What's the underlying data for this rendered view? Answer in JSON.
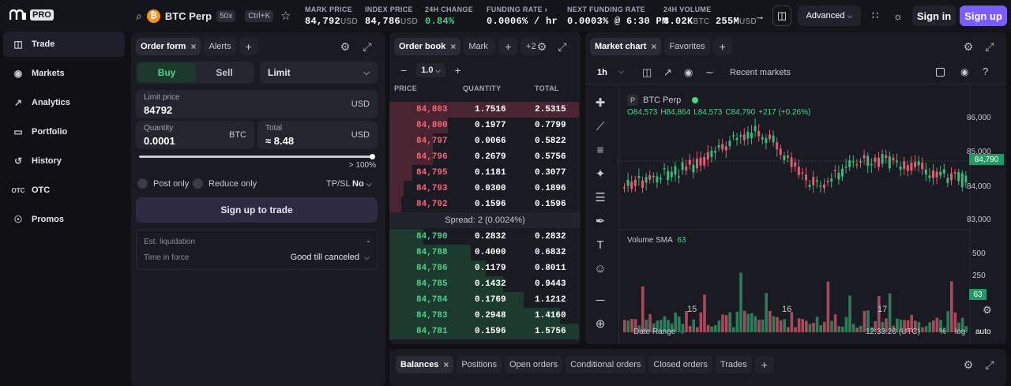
{
  "brand": {
    "name": "PRO"
  },
  "market": {
    "symbol": "BTC Perp",
    "leverage": "50x",
    "shortcut": "Ctrl+K",
    "coin_glyph": "₿"
  },
  "stats": [
    {
      "label": "MARK PRICE",
      "value": "84,792",
      "unit": "USD"
    },
    {
      "label": "INDEX PRICE",
      "value": "84,786",
      "unit": "USD"
    },
    {
      "label": "24H CHANGE",
      "value": "0.84%",
      "unit": ""
    },
    {
      "label": "FUNDING RATE",
      "value": "0.0006% / hr",
      "unit": ""
    },
    {
      "label": "NEXT FUNDING RATE",
      "value": "0.0003% @ 6:30 PM",
      "unit": ""
    },
    {
      "label": "24H VOLUME",
      "value": "3.02K",
      "unit": "BTC",
      "value2": "255M",
      "unit2": "USD"
    }
  ],
  "topbar": {
    "advanced": "Advanced",
    "signin": "Sign in",
    "signup": "Sign up"
  },
  "sidebar": {
    "items": [
      {
        "label": "Trade",
        "icon": "trade-icon"
      },
      {
        "label": "Markets",
        "icon": "markets-icon"
      },
      {
        "label": "Analytics",
        "icon": "analytics-icon"
      },
      {
        "label": "Portfolio",
        "icon": "portfolio-icon"
      },
      {
        "label": "History",
        "icon": "history-icon"
      },
      {
        "label": "OTC",
        "icon": "otc-icon",
        "icon_text": "OTC"
      },
      {
        "label": "Promos",
        "icon": "trophy-icon"
      }
    ]
  },
  "order_form": {
    "tabs": [
      "Order form",
      "Alerts"
    ],
    "buy": "Buy",
    "sell": "Sell",
    "order_type": "Limit",
    "limit_price_label": "Limit price",
    "limit_price": "84792",
    "limit_unit": "USD",
    "qty_label": "Quantity",
    "qty": "0.0001",
    "qty_unit": "BTC",
    "total_label": "Total",
    "total": "≈ 8.48",
    "total_unit": "USD",
    "slider_pct": "> 100%",
    "post_only": "Post only",
    "reduce_only": "Reduce only",
    "tpsl_label": "TP/SL",
    "tpsl_value": "No",
    "cta": "Sign up to trade",
    "liq_label": "Est. liquidation",
    "liq_value": "-",
    "tif_label": "Time in force",
    "tif_value": "Good till canceled"
  },
  "orderbook": {
    "tabs": [
      "Order book",
      "Mark"
    ],
    "more": "+2",
    "tick": "1.0",
    "headers": [
      "PRICE",
      "QUANTITY",
      "TOTAL"
    ],
    "asks": [
      {
        "p": "84,803",
        "q": "1.7516",
        "t": "2.5315",
        "d": 1.0
      },
      {
        "p": "84,800",
        "q": "0.1977",
        "t": "0.7799",
        "d": 0.31
      },
      {
        "p": "84,797",
        "q": "0.0066",
        "t": "0.5822",
        "d": 0.23
      },
      {
        "p": "84,796",
        "q": "0.2679",
        "t": "0.5756",
        "d": 0.23
      },
      {
        "p": "84,795",
        "q": "0.1181",
        "t": "0.3077",
        "d": 0.12
      },
      {
        "p": "84,793",
        "q": "0.0300",
        "t": "0.1896",
        "d": 0.075
      },
      {
        "p": "84,792",
        "q": "0.1596",
        "t": "0.1596",
        "d": 0.063
      }
    ],
    "spread": "Spread: 2 (0.0024%)",
    "bids": [
      {
        "p": "84,790",
        "q": "0.2832",
        "t": "0.2832",
        "d": 0.18
      },
      {
        "p": "84,788",
        "q": "0.4000",
        "t": "0.6832",
        "d": 0.43
      },
      {
        "p": "84,786",
        "q": "0.1179",
        "t": "0.8011",
        "d": 0.51
      },
      {
        "p": "84,785",
        "q": "0.1432",
        "t": "0.9443",
        "d": 0.6
      },
      {
        "p": "84,784",
        "q": "0.1769",
        "t": "1.1212",
        "d": 0.71
      },
      {
        "p": "84,783",
        "q": "0.2948",
        "t": "1.4160",
        "d": 0.9
      },
      {
        "p": "84,781",
        "q": "0.1596",
        "t": "1.5756",
        "d": 1.0
      }
    ]
  },
  "chart": {
    "tabs": [
      "Market chart",
      "Favorites"
    ],
    "interval": "1h",
    "recent": "Recent markets",
    "symbol": "BTC Perp",
    "ohlc": {
      "o": "O84,573",
      "h": "H84,864",
      "l": "L84,573",
      "c": "C84,790",
      "chg": "+217 (+0.26%)"
    },
    "price_ticks": [
      "86,000",
      "85,000",
      "84,000",
      "83,000"
    ],
    "last_price": "84,790",
    "volume_label": "Volume SMA",
    "volume_value": "63",
    "vol_ticks": [
      "500",
      "250"
    ],
    "vol_last": "63",
    "x_ticks": [
      "15",
      "16",
      "17"
    ],
    "date_range": "Date Range",
    "time": "12:33:20 (UTC)",
    "pct": "%",
    "log": "log",
    "auto": "auto"
  },
  "bottom": {
    "tabs": [
      "Balances",
      "Positions",
      "Open orders",
      "Conditional orders",
      "Closed orders",
      "Trades"
    ]
  },
  "colors": {
    "accent": "#7b5cff",
    "up": "#4cd38a",
    "down": "#f06a7c"
  }
}
